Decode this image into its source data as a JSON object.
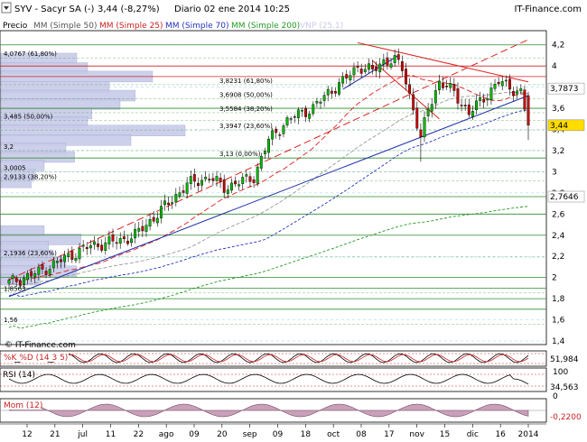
{
  "header": {
    "title": "SYV - Sacyr SA (-)",
    "quote": "3,44 (-8,27%)",
    "period_date": "Diario  02 ene 2014 10:25",
    "brand": "IT-Finance.com"
  },
  "legend": {
    "price": "Precio",
    "ma50": "MM (Simple 50)",
    "ma25": "MM (Simple 25)",
    "ma70": "MM (Simple 70)",
    "ma200": "MM (Simple 200)",
    "vnp": "VNP (25.1)"
  },
  "watermark": "© IT-Finance.com",
  "colors": {
    "bullish": "#00bb00",
    "bearish": "#cc0000",
    "ma25": "#dd2222",
    "ma50": "#999999",
    "ma70": "#2233bb",
    "ma200": "#229922",
    "trend_blue": "#1f2fa8",
    "trend_red": "#dd2222",
    "level_green": "#2e8b2e",
    "level_red": "#cc2222",
    "volume_profile": "#c8cbe8",
    "current_price_badge": "#ffdd00"
  },
  "chart_data": [
    {
      "type": "candlestick",
      "panel": "price",
      "title": "SYV - Sacyr SA (-)",
      "ylim": [
        1.4,
        4.3
      ],
      "y_ticks": [
        "1,4",
        "1,6",
        "1,8",
        "2",
        "2,2",
        "2,4",
        "2,6",
        "2,8",
        "3",
        "3,2",
        "3,4",
        "3,6",
        "3,8",
        "4",
        "4,2"
      ],
      "x_ticks": [
        "12",
        "21",
        "jul",
        "11",
        "22",
        "ago",
        "09",
        "20",
        "sep",
        "09",
        "18",
        "oct",
        "08",
        "17",
        "nov",
        "15",
        "dic",
        "16",
        "2014"
      ],
      "ohlc_anchor_closes": [
        [
          0,
          1.95
        ],
        [
          8,
          2.05
        ],
        [
          16,
          2.2
        ],
        [
          22,
          2.3
        ],
        [
          30,
          2.35
        ],
        [
          34,
          2.4
        ],
        [
          40,
          2.6
        ],
        [
          48,
          2.88
        ],
        [
          54,
          2.95
        ],
        [
          58,
          2.85
        ],
        [
          62,
          2.9
        ],
        [
          66,
          2.95
        ],
        [
          70,
          3.3
        ],
        [
          74,
          3.45
        ],
        [
          78,
          3.55
        ],
        [
          82,
          3.6
        ],
        [
          86,
          3.75
        ],
        [
          90,
          3.85
        ],
        [
          94,
          4.0
        ],
        [
          98,
          3.95
        ],
        [
          101,
          4.05
        ],
        [
          104,
          4.05
        ],
        [
          106,
          3.98
        ],
        [
          109,
          3.6
        ],
        [
          111,
          3.3
        ],
        [
          113,
          3.6
        ],
        [
          116,
          3.85
        ],
        [
          120,
          3.75
        ],
        [
          124,
          3.55
        ],
        [
          128,
          3.7
        ],
        [
          132,
          3.85
        ],
        [
          135,
          3.8
        ],
        [
          138,
          3.75
        ],
        [
          140,
          3.44
        ]
      ],
      "current_price": 3.44,
      "price_labels": [
        {
          "label": "3,7873",
          "value": 3.7873
        },
        {
          "label": "3,44",
          "value": 3.44
        },
        {
          "label": "2,7646",
          "value": 2.7646
        }
      ],
      "fibonacci_levels": [
        {
          "label": "4,0767 (61,80%)",
          "value": 4.0767
        },
        {
          "label": "3,8231 (61,80%)",
          "value": 3.8231
        },
        {
          "label": "3,6908 (50,00%)",
          "value": 3.6908
        },
        {
          "label": "3,5584 (38,20%)",
          "value": 3.5584
        },
        {
          "label": "3,485 (50,00%)",
          "value": 3.485
        },
        {
          "label": "3,3947 (23,60%)",
          "value": 3.3947
        },
        {
          "label": "3,13 (0,00%)",
          "value": 3.13
        },
        {
          "label": "3,2",
          "value": 3.2
        },
        {
          "label": "3,0005",
          "value": 3.0005
        },
        {
          "label": "2,9133 (38,20%)",
          "value": 2.9133
        },
        {
          "label": "2,1936 (23,60%)",
          "value": 2.1936
        },
        {
          "label": "1,8563",
          "value": 1.8563
        },
        {
          "label": "1,56",
          "value": 1.56
        }
      ],
      "horizontal_levels_green": [
        4.2,
        3.6,
        3.13,
        2.7646,
        2.6,
        2.4,
        2.0,
        1.9,
        1.8,
        1.7
      ],
      "horizontal_levels_red": [
        4.0,
        3.9
      ],
      "volume_profile": [
        {
          "price": 4.07,
          "size": 0.35
        },
        {
          "price": 3.98,
          "size": 0.4
        },
        {
          "price": 3.9,
          "size": 0.7
        },
        {
          "price": 3.8,
          "size": 0.5
        },
        {
          "price": 3.72,
          "size": 0.62
        },
        {
          "price": 3.64,
          "size": 0.55
        },
        {
          "price": 3.55,
          "size": 0.42
        },
        {
          "price": 3.47,
          "size": 0.4
        },
        {
          "price": 3.39,
          "size": 0.85
        },
        {
          "price": 3.3,
          "size": 0.6
        },
        {
          "price": 3.22,
          "size": 0.3
        },
        {
          "price": 3.14,
          "size": 0.34
        },
        {
          "price": 3.06,
          "size": 0.2
        },
        {
          "price": 2.97,
          "size": 0.16
        },
        {
          "price": 2.9,
          "size": 0.14
        },
        {
          "price": 2.44,
          "size": 0.2
        },
        {
          "price": 2.36,
          "size": 0.37
        },
        {
          "price": 2.29,
          "size": 0.22
        },
        {
          "price": 2.21,
          "size": 0.24
        },
        {
          "price": 2.14,
          "size": 0.3
        },
        {
          "price": 2.06,
          "size": 0.35
        },
        {
          "price": 1.98,
          "size": 0.18
        }
      ]
    },
    {
      "type": "line",
      "panel": "stochastic",
      "title": "%K  %D (14 3 5)",
      "last_value": "51,984",
      "ylim": [
        0,
        100
      ]
    },
    {
      "type": "line",
      "panel": "rsi",
      "title": "RSI (14)",
      "y_ticks": [
        "100",
        "0"
      ],
      "last_value": "34,563",
      "ylim": [
        0,
        100
      ]
    },
    {
      "type": "area",
      "panel": "momentum",
      "title": "Mom (12)",
      "last_value": "-0,2200"
    }
  ]
}
